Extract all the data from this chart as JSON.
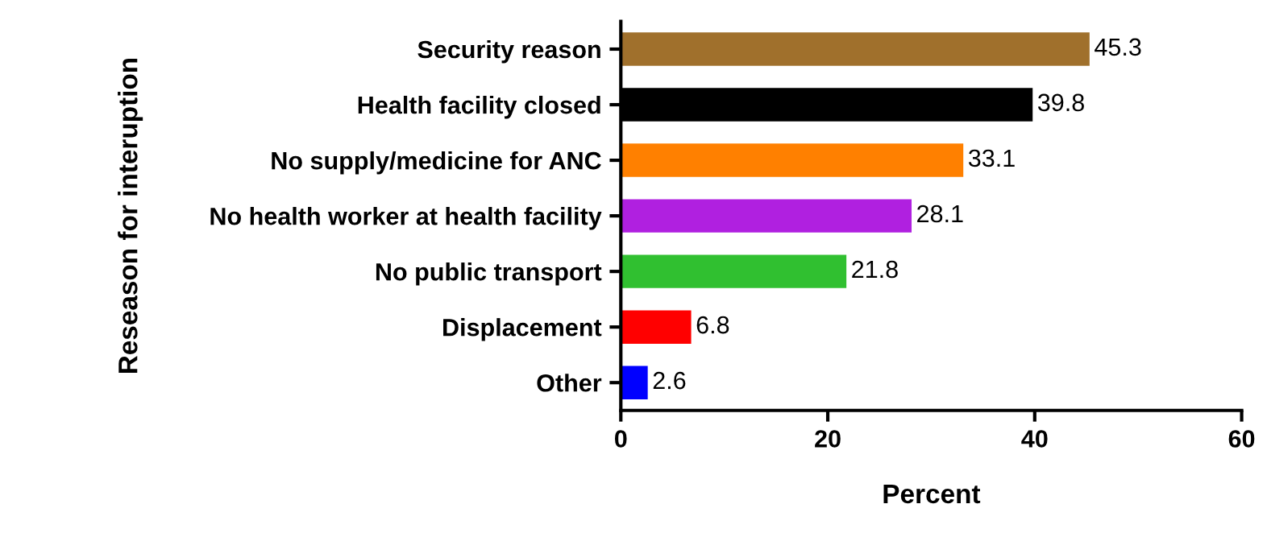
{
  "chart_data": {
    "type": "bar",
    "orientation": "horizontal",
    "xlabel": "Percent",
    "ylabel": "Reseason for interuption",
    "categories": [
      "Security reason",
      "Health facility closed",
      "No supply/medicine for ANC",
      "No health worker at health facility",
      "No public transport",
      "Displacement",
      "Other"
    ],
    "values": [
      45.3,
      39.8,
      33.1,
      28.1,
      21.8,
      6.8,
      2.6
    ],
    "colors": [
      "#a0702c",
      "#000000",
      "#ff8000",
      "#b020e0",
      "#30c030",
      "#ff0000",
      "#0000ff"
    ],
    "xlim": [
      0,
      60
    ],
    "xticks": [
      0,
      20,
      40,
      60
    ],
    "data_labels": true,
    "grid": false,
    "legend": false
  }
}
